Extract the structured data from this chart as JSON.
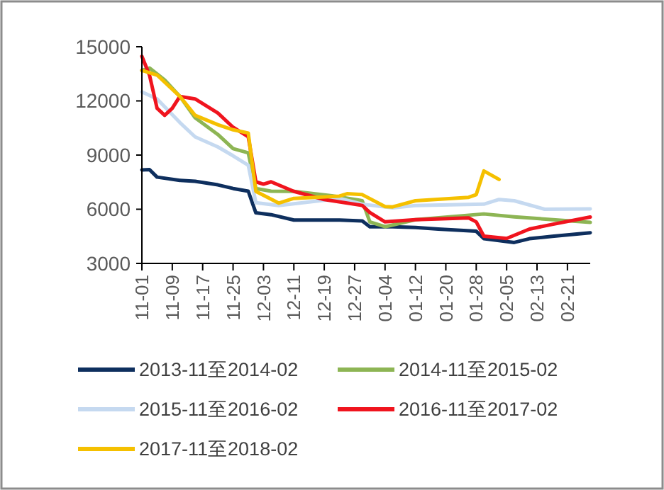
{
  "chart_data": {
    "type": "line",
    "legend": "bottom",
    "grid": false,
    "categories": [
      "11-01",
      null,
      null,
      null,
      "11-09",
      null,
      null,
      null,
      "11-17",
      null,
      null,
      null,
      "11-25",
      null,
      null,
      null,
      "12-03",
      null,
      null,
      null,
      "12-11",
      null,
      null,
      null,
      "12-19",
      null,
      null,
      null,
      "12-27",
      null,
      null,
      null,
      "01-04",
      null,
      null,
      null,
      "01-12",
      null,
      null,
      null,
      "01-20",
      null,
      null,
      null,
      "01-28",
      null,
      null,
      null,
      "02-05",
      null,
      null,
      null,
      "02-13",
      null,
      null,
      null,
      "02-21",
      null,
      null,
      null
    ],
    "ylim": [
      3000,
      15000
    ],
    "yticks": [
      3000,
      6000,
      9000,
      12000,
      15000
    ],
    "series": [
      {
        "name": "2013-11至2014-02",
        "color": "#0e2f5e",
        "values": [
          8180,
          8200,
          7780,
          null,
          null,
          7600,
          null,
          7550,
          null,
          null,
          7350,
          null,
          7150,
          null,
          7000,
          5800,
          null,
          5700,
          null,
          null,
          5400,
          null,
          null,
          null,
          null,
          null,
          5400,
          null,
          null,
          5350,
          5030,
          null,
          null,
          5030,
          null,
          null,
          4990,
          null,
          null,
          4900,
          null,
          null,
          null,
          null,
          4780,
          4370,
          null,
          null,
          null,
          4160,
          null,
          4370,
          null,
          null,
          4500,
          null,
          null,
          null,
          null,
          4700
        ]
      },
      {
        "name": "2014-11至2015-02",
        "color": "#8db554",
        "values": [
          13690,
          13820,
          null,
          13160,
          null,
          12250,
          null,
          11070,
          null,
          null,
          10140,
          null,
          9360,
          null,
          9120,
          7150,
          null,
          7000,
          null,
          null,
          6990,
          null,
          null,
          null,
          null,
          6750,
          null,
          null,
          null,
          6470,
          5300,
          null,
          5030,
          null,
          null,
          null,
          5420,
          null,
          null,
          null,
          null,
          null,
          null,
          null,
          null,
          5740,
          null,
          null,
          null,
          5580,
          null,
          null,
          null,
          null,
          null,
          null,
          null,
          null,
          null,
          5270
        ]
      },
      {
        "name": "2015-11至2016-02",
        "color": "#c5d9f0",
        "values": [
          12500,
          null,
          12110,
          null,
          null,
          10800,
          null,
          10010,
          null,
          null,
          9450,
          null,
          8960,
          null,
          8440,
          6360,
          null,
          null,
          6210,
          null,
          null,
          null,
          null,
          null,
          null,
          null,
          6600,
          null,
          null,
          6280,
          null,
          null,
          null,
          6080,
          null,
          null,
          6210,
          null,
          null,
          null,
          null,
          null,
          null,
          null,
          null,
          6280,
          null,
          6540,
          null,
          6470,
          null,
          null,
          null,
          6000,
          null,
          null,
          null,
          null,
          null,
          6020
        ]
      },
      {
        "name": "2016-11至2017-02",
        "color": "#f0141e",
        "values": [
          14470,
          13430,
          11590,
          11200,
          11590,
          12250,
          null,
          12110,
          null,
          null,
          11330,
          null,
          10540,
          null,
          10010,
          7520,
          7390,
          7520,
          null,
          null,
          6990,
          null,
          null,
          null,
          6540,
          null,
          null,
          null,
          null,
          6210,
          5820,
          null,
          5300,
          null,
          null,
          null,
          5420,
          null,
          null,
          null,
          null,
          null,
          null,
          5520,
          5300,
          4510,
          null,
          null,
          4380,
          null,
          null,
          4900,
          null,
          null,
          5160,
          null,
          null,
          null,
          null,
          5570
        ]
      },
      {
        "name": "2017-11至2018-02",
        "color": "#f5c000",
        "values": [
          13690,
          null,
          13430,
          null,
          null,
          12250,
          null,
          11200,
          null,
          null,
          10680,
          null,
          10400,
          null,
          10220,
          6990,
          null,
          null,
          6340,
          null,
          6600,
          null,
          null,
          null,
          null,
          null,
          6730,
          6860,
          null,
          6810,
          null,
          null,
          6150,
          6130,
          null,
          null,
          6470,
          null,
          null,
          null,
          null,
          null,
          null,
          6660,
          6810,
          8120,
          null,
          7650,
          null,
          null,
          null,
          null,
          null,
          null,
          null,
          null,
          null,
          null,
          null,
          null
        ]
      }
    ]
  }
}
